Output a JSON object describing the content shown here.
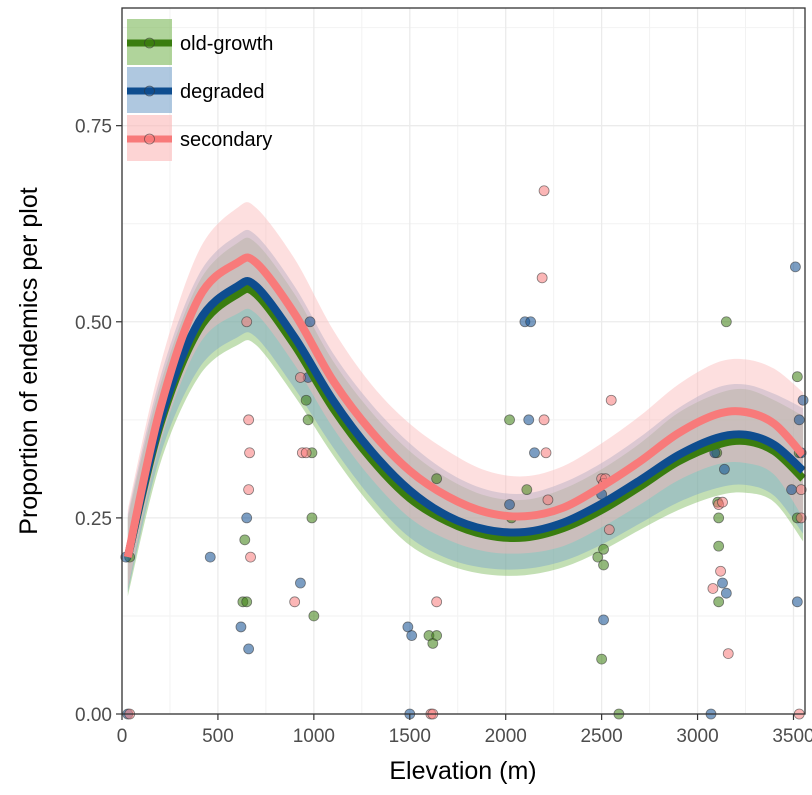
{
  "chart_data": {
    "type": "scatter",
    "xlabel": "Elevation (m)",
    "ylabel": "Proportion of endemics per plot",
    "xlim": [
      0,
      3560
    ],
    "ylim": [
      0,
      0.9
    ],
    "x_ticks": [
      0,
      500,
      1000,
      1500,
      2000,
      2500,
      3000,
      3500
    ],
    "x_tick_labels": [
      "0",
      "500",
      "1000",
      "1500",
      "2000",
      "2500",
      "3000",
      "3500"
    ],
    "y_ticks": [
      0,
      0.25,
      0.5,
      0.75
    ],
    "y_tick_labels": [
      "0.00",
      "0.25",
      "0.50",
      "0.75"
    ],
    "grid": true,
    "legend_position": "top-left",
    "series": [
      {
        "name": "old-growth",
        "color": "#3a7d0f",
        "band_color": "#7bb859",
        "points": [
          [
            40,
            0.2
          ],
          [
            630,
            0.143
          ],
          [
            640,
            0.222
          ],
          [
            650,
            0.143
          ],
          [
            960,
            0.4
          ],
          [
            970,
            0.375
          ],
          [
            990,
            0.333
          ],
          [
            990,
            0.25
          ],
          [
            1000,
            0.125
          ],
          [
            1600,
            0.1
          ],
          [
            1620,
            0.09
          ],
          [
            1640,
            0.1
          ],
          [
            1640,
            0.3
          ],
          [
            2020,
            0.375
          ],
          [
            2030,
            0.25
          ],
          [
            2110,
            0.286
          ],
          [
            2480,
            0.2
          ],
          [
            2500,
            0.07
          ],
          [
            2510,
            0.21
          ],
          [
            2510,
            0.19
          ],
          [
            2590,
            0.0
          ],
          [
            3100,
            0.333
          ],
          [
            3105,
            0.27
          ],
          [
            3110,
            0.25
          ],
          [
            3110,
            0.214
          ],
          [
            3110,
            0.143
          ],
          [
            3150,
            0.5
          ],
          [
            3520,
            0.43
          ],
          [
            3520,
            0.25
          ],
          [
            3530,
            0.333
          ]
        ],
        "fit": [
          [
            30,
            0.2
          ],
          [
            200,
            0.37
          ],
          [
            400,
            0.49
          ],
          [
            600,
            0.535
          ],
          [
            700,
            0.535
          ],
          [
            900,
            0.47
          ],
          [
            1100,
            0.39
          ],
          [
            1300,
            0.325
          ],
          [
            1500,
            0.275
          ],
          [
            1700,
            0.245
          ],
          [
            1900,
            0.228
          ],
          [
            2100,
            0.225
          ],
          [
            2300,
            0.237
          ],
          [
            2500,
            0.26
          ],
          [
            2700,
            0.29
          ],
          [
            2900,
            0.322
          ],
          [
            3100,
            0.343
          ],
          [
            3250,
            0.348
          ],
          [
            3400,
            0.335
          ],
          [
            3550,
            0.3
          ]
        ],
        "lower": [
          [
            30,
            0.15
          ],
          [
            200,
            0.32
          ],
          [
            400,
            0.43
          ],
          [
            600,
            0.47
          ],
          [
            700,
            0.47
          ],
          [
            900,
            0.405
          ],
          [
            1100,
            0.33
          ],
          [
            1300,
            0.265
          ],
          [
            1500,
            0.215
          ],
          [
            1700,
            0.19
          ],
          [
            1900,
            0.178
          ],
          [
            2100,
            0.177
          ],
          [
            2300,
            0.187
          ],
          [
            2500,
            0.208
          ],
          [
            2700,
            0.235
          ],
          [
            2900,
            0.26
          ],
          [
            3100,
            0.278
          ],
          [
            3250,
            0.282
          ],
          [
            3400,
            0.27
          ],
          [
            3550,
            0.22
          ]
        ],
        "upper": [
          [
            30,
            0.25
          ],
          [
            200,
            0.42
          ],
          [
            400,
            0.55
          ],
          [
            600,
            0.6
          ],
          [
            700,
            0.6
          ],
          [
            900,
            0.535
          ],
          [
            1100,
            0.45
          ],
          [
            1300,
            0.385
          ],
          [
            1500,
            0.335
          ],
          [
            1700,
            0.3
          ],
          [
            1900,
            0.278
          ],
          [
            2100,
            0.273
          ],
          [
            2300,
            0.287
          ],
          [
            2500,
            0.312
          ],
          [
            2700,
            0.345
          ],
          [
            2900,
            0.384
          ],
          [
            3100,
            0.408
          ],
          [
            3250,
            0.414
          ],
          [
            3400,
            0.4
          ],
          [
            3550,
            0.38
          ]
        ]
      },
      {
        "name": "degraded",
        "color": "#0e4d8f",
        "band_color": "#7aa3cc",
        "points": [
          [
            20,
            0.2
          ],
          [
            30,
            0.0
          ],
          [
            460,
            0.2
          ],
          [
            620,
            0.111
          ],
          [
            650,
            0.25
          ],
          [
            660,
            0.083
          ],
          [
            930,
            0.167
          ],
          [
            970,
            0.429
          ],
          [
            980,
            0.5
          ],
          [
            1490,
            0.111
          ],
          [
            1500,
            0.0
          ],
          [
            1510,
            0.1
          ],
          [
            2020,
            0.267
          ],
          [
            2100,
            0.5
          ],
          [
            2120,
            0.375
          ],
          [
            2130,
            0.5
          ],
          [
            2150,
            0.333
          ],
          [
            2500,
            0.28
          ],
          [
            2510,
            0.12
          ],
          [
            3070,
            0.0
          ],
          [
            3090,
            0.333
          ],
          [
            3130,
            0.167
          ],
          [
            3140,
            0.312
          ],
          [
            3150,
            0.154
          ],
          [
            3490,
            0.286
          ],
          [
            3510,
            0.57
          ],
          [
            3520,
            0.143
          ],
          [
            3530,
            0.375
          ],
          [
            3550,
            0.4
          ],
          [
            3540,
            0.333
          ]
        ],
        "fit": [
          [
            30,
            0.2
          ],
          [
            200,
            0.375
          ],
          [
            400,
            0.5
          ],
          [
            600,
            0.545
          ],
          [
            700,
            0.545
          ],
          [
            900,
            0.48
          ],
          [
            1100,
            0.4
          ],
          [
            1300,
            0.335
          ],
          [
            1500,
            0.285
          ],
          [
            1700,
            0.252
          ],
          [
            1900,
            0.235
          ],
          [
            2100,
            0.232
          ],
          [
            2300,
            0.244
          ],
          [
            2500,
            0.268
          ],
          [
            2700,
            0.298
          ],
          [
            2900,
            0.33
          ],
          [
            3100,
            0.352
          ],
          [
            3250,
            0.356
          ],
          [
            3400,
            0.343
          ],
          [
            3550,
            0.31
          ]
        ],
        "lower": [
          [
            30,
            0.155
          ],
          [
            200,
            0.33
          ],
          [
            400,
            0.44
          ],
          [
            600,
            0.48
          ],
          [
            700,
            0.48
          ],
          [
            900,
            0.415
          ],
          [
            1100,
            0.34
          ],
          [
            1300,
            0.275
          ],
          [
            1500,
            0.225
          ],
          [
            1700,
            0.198
          ],
          [
            1900,
            0.186
          ],
          [
            2100,
            0.185
          ],
          [
            2300,
            0.195
          ],
          [
            2500,
            0.216
          ],
          [
            2700,
            0.243
          ],
          [
            2900,
            0.27
          ],
          [
            3100,
            0.288
          ],
          [
            3250,
            0.292
          ],
          [
            3400,
            0.278
          ],
          [
            3550,
            0.23
          ]
        ],
        "upper": [
          [
            30,
            0.255
          ],
          [
            200,
            0.43
          ],
          [
            400,
            0.56
          ],
          [
            600,
            0.61
          ],
          [
            700,
            0.61
          ],
          [
            900,
            0.545
          ],
          [
            1100,
            0.46
          ],
          [
            1300,
            0.395
          ],
          [
            1500,
            0.345
          ],
          [
            1700,
            0.308
          ],
          [
            1900,
            0.286
          ],
          [
            2100,
            0.281
          ],
          [
            2300,
            0.295
          ],
          [
            2500,
            0.32
          ],
          [
            2700,
            0.353
          ],
          [
            2900,
            0.39
          ],
          [
            3100,
            0.416
          ],
          [
            3250,
            0.42
          ],
          [
            3400,
            0.408
          ],
          [
            3550,
            0.39
          ]
        ]
      },
      {
        "name": "secondary",
        "color": "#f87a7a",
        "band_color": "#fbb8b8",
        "points": [
          [
            40,
            0.0
          ],
          [
            650,
            0.5
          ],
          [
            660,
            0.375
          ],
          [
            660,
            0.286
          ],
          [
            665,
            0.333
          ],
          [
            670,
            0.2
          ],
          [
            900,
            0.143
          ],
          [
            930,
            0.429
          ],
          [
            940,
            0.333
          ],
          [
            960,
            0.333
          ],
          [
            1610,
            0.0
          ],
          [
            1620,
            0.0
          ],
          [
            1640,
            0.143
          ],
          [
            2190,
            0.556
          ],
          [
            2200,
            0.667
          ],
          [
            2200,
            0.375
          ],
          [
            2210,
            0.333
          ],
          [
            2220,
            0.273
          ],
          [
            2500,
            0.3
          ],
          [
            2510,
            0.294
          ],
          [
            2520,
            0.3
          ],
          [
            2540,
            0.235
          ],
          [
            2550,
            0.4
          ],
          [
            3080,
            0.16
          ],
          [
            3110,
            0.267
          ],
          [
            3120,
            0.182
          ],
          [
            3130,
            0.27
          ],
          [
            3160,
            0.077
          ],
          [
            3530,
            0.0
          ],
          [
            3540,
            0.286
          ],
          [
            3540,
            0.25
          ]
        ],
        "fit": [
          [
            30,
            0.2
          ],
          [
            200,
            0.39
          ],
          [
            400,
            0.53
          ],
          [
            600,
            0.575
          ],
          [
            700,
            0.575
          ],
          [
            900,
            0.51
          ],
          [
            1100,
            0.425
          ],
          [
            1300,
            0.36
          ],
          [
            1500,
            0.31
          ],
          [
            1700,
            0.277
          ],
          [
            1900,
            0.257
          ],
          [
            2100,
            0.252
          ],
          [
            2300,
            0.263
          ],
          [
            2500,
            0.29
          ],
          [
            2700,
            0.322
          ],
          [
            2900,
            0.358
          ],
          [
            3100,
            0.382
          ],
          [
            3250,
            0.385
          ],
          [
            3400,
            0.37
          ],
          [
            3550,
            0.33
          ]
        ],
        "lower": [
          [
            30,
            0.16
          ],
          [
            200,
            0.345
          ],
          [
            400,
            0.47
          ],
          [
            600,
            0.51
          ],
          [
            700,
            0.51
          ],
          [
            900,
            0.445
          ],
          [
            1100,
            0.365
          ],
          [
            1300,
            0.3
          ],
          [
            1500,
            0.25
          ],
          [
            1700,
            0.222
          ],
          [
            1900,
            0.207
          ],
          [
            2100,
            0.205
          ],
          [
            2300,
            0.214
          ],
          [
            2500,
            0.238
          ],
          [
            2700,
            0.267
          ],
          [
            2900,
            0.298
          ],
          [
            3100,
            0.318
          ],
          [
            3250,
            0.32
          ],
          [
            3400,
            0.305
          ],
          [
            3550,
            0.25
          ]
        ],
        "upper": [
          [
            30,
            0.26
          ],
          [
            200,
            0.445
          ],
          [
            400,
            0.59
          ],
          [
            600,
            0.645
          ],
          [
            700,
            0.645
          ],
          [
            900,
            0.58
          ],
          [
            1100,
            0.49
          ],
          [
            1300,
            0.42
          ],
          [
            1500,
            0.37
          ],
          [
            1700,
            0.335
          ],
          [
            1900,
            0.31
          ],
          [
            2100,
            0.303
          ],
          [
            2300,
            0.316
          ],
          [
            2500,
            0.345
          ],
          [
            2700,
            0.38
          ],
          [
            2900,
            0.42
          ],
          [
            3100,
            0.448
          ],
          [
            3250,
            0.452
          ],
          [
            3400,
            0.44
          ],
          [
            3550,
            0.41
          ]
        ]
      }
    ]
  }
}
